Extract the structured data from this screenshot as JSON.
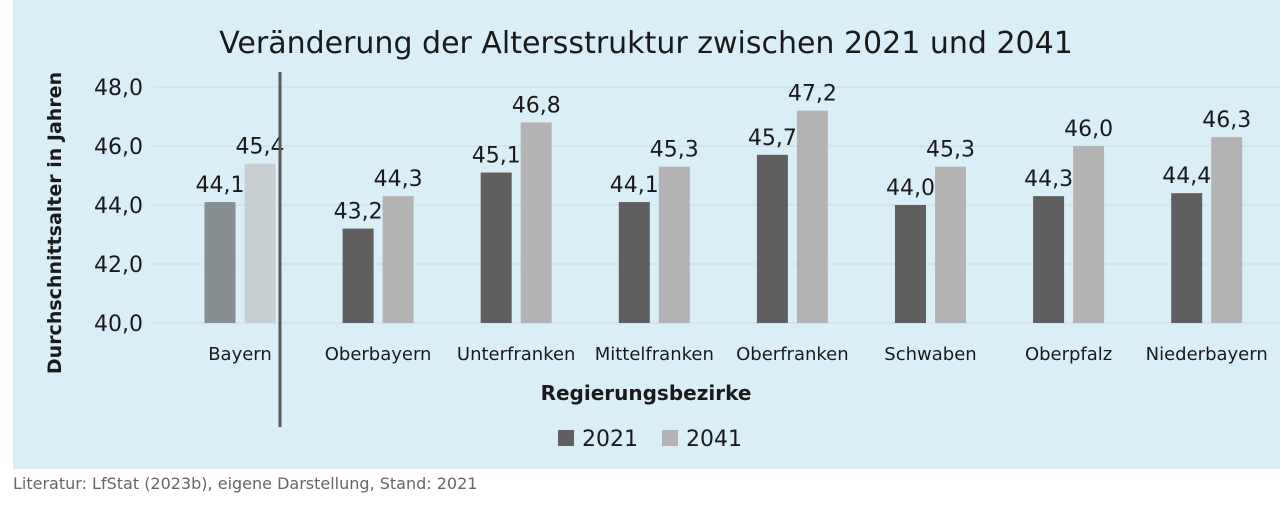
{
  "colors": {
    "panel_bg": "#daeef8",
    "gridline": "#c9dce6",
    "series_2021": "#5f5f5f",
    "series_2041": "#b3b3b3",
    "bayern_2021": "#868e91",
    "bayern_2041": "#c8cfd2",
    "separator": "#595959",
    "text": "#1a1a1a"
  },
  "source_note": "Literatur: LfStat (2023b), eigene Darstellung, Stand: 2021",
  "chart_data": {
    "type": "bar",
    "title": "Veränderung der Altersstruktur zwischen 2021 und 2041",
    "xlabel": "Regierungsbezirke",
    "ylabel": "Durchschnittsalter in Jahren",
    "ylim": [
      40,
      48
    ],
    "yticks": [
      "40,0",
      "42,0",
      "44,0",
      "46,0",
      "48,0"
    ],
    "ytick_values": [
      40,
      42,
      44,
      46,
      48
    ],
    "grid": true,
    "legend_position": "bottom",
    "categories": [
      "Bayern",
      "Oberbayern",
      "Unterfranken",
      "Mittelfranken",
      "Oberfranken",
      "Schwaben",
      "Oberpfalz",
      "Niederbayern"
    ],
    "series": [
      {
        "name": "2021",
        "values": [
          44.1,
          43.2,
          45.1,
          44.1,
          45.7,
          44.0,
          44.3,
          44.4
        ],
        "labels": [
          "44,1",
          "43,2",
          "45,1",
          "44,1",
          "45,7",
          "44,0",
          "44,3",
          "44,4"
        ]
      },
      {
        "name": "2041",
        "values": [
          45.4,
          44.3,
          46.8,
          45.3,
          47.2,
          45.3,
          46.0,
          46.3
        ],
        "labels": [
          "45,4",
          "44,3",
          "46,8",
          "45,3",
          "47,2",
          "45,3",
          "46,0",
          "46,3"
        ]
      }
    ]
  }
}
